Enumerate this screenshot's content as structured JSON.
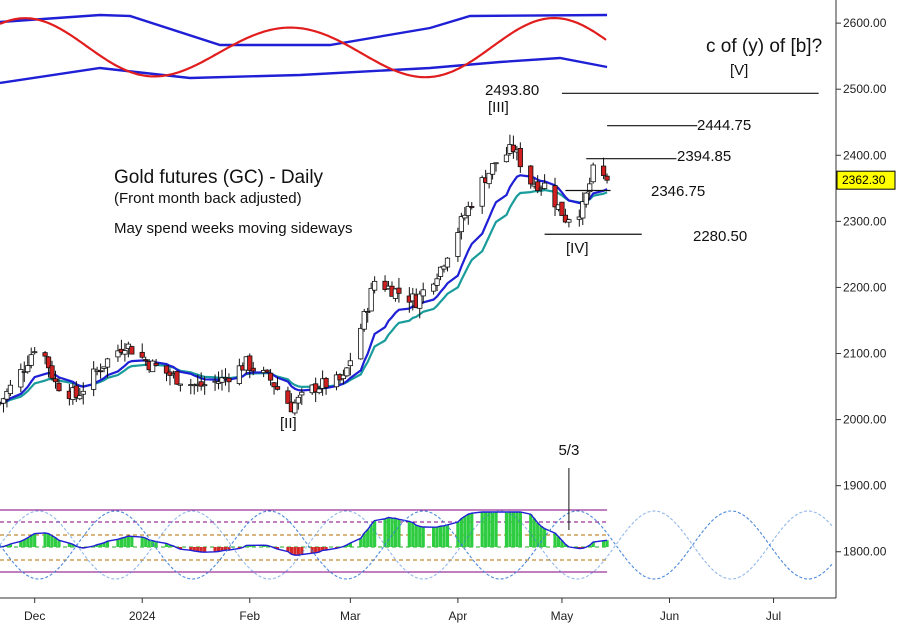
{
  "chart_data": {
    "type": "candlestick",
    "y_axis": {
      "range": [
        1730,
        2635
      ],
      "ticks": [
        1800,
        1900,
        2000,
        2100,
        2200,
        2300,
        2400,
        2500,
        2600
      ],
      "tick_labels": [
        "1800.00",
        "1900.00",
        "2000.00",
        "2100.00",
        "2200.00",
        "2300.00",
        "2400.00",
        "2500.00",
        "2600.00"
      ],
      "last_price_label": "2362.30",
      "last_price": 2362.3
    },
    "x_axis": {
      "labels": [
        {
          "text": "Dec",
          "date": "2023-12-01"
        },
        {
          "text": "2024",
          "date": "2024-01-01"
        },
        {
          "text": "Feb",
          "date": "2024-02-01"
        },
        {
          "text": "Mar",
          "date": "2024-03-01"
        },
        {
          "text": "Apr",
          "date": "2024-04-01"
        },
        {
          "text": "May",
          "date": "2024-05-01"
        },
        {
          "text": "Jun",
          "date": "2024-06-01"
        },
        {
          "text": "Jul",
          "date": "2024-07-01"
        }
      ],
      "range": [
        "2023-11-21",
        "2024-07-19"
      ]
    },
    "title": "Gold futures (GC) - Daily",
    "subtitle": "(Front month back adjusted)",
    "note": "May spend weeks moving sideways",
    "wave_labels": [
      {
        "text": "[II]",
        "date": "2024-02-14",
        "price": 1998
      },
      {
        "text": "[III]",
        "date": "2024-04-12",
        "price": 2470
      },
      {
        "text": "[IV]",
        "date": "2024-05-03",
        "price": 2262
      },
      {
        "text": "[V]",
        "date": "2024-06-29",
        "price": 2518
      },
      {
        "text": "c of (y) of [b]?",
        "date": "2024-06-29",
        "price": 2557
      }
    ],
    "levels": [
      {
        "label": "2493.80",
        "value": 2493.8,
        "from": "2024-05-01",
        "to": "2024-07-14"
      },
      {
        "label": "2444.75",
        "value": 2444.75,
        "from": "2024-05-14",
        "to": "2024-06-09"
      },
      {
        "label": "2394.85",
        "value": 2394.85,
        "from": "2024-05-08",
        "to": "2024-06-03"
      },
      {
        "label": "2346.75",
        "value": 2346.75,
        "from": "2024-05-02",
        "to": "2024-05-15"
      },
      {
        "label": "2280.50",
        "value": 2280.5,
        "from": "2024-04-26",
        "to": "2024-05-24"
      }
    ],
    "marker": {
      "text": "5/3",
      "date": "2024-05-03"
    },
    "price_series": {
      "anchors": [
        {
          "date": "2023-11-21",
          "close": 2025
        },
        {
          "date": "2023-11-28",
          "close": 2080
        },
        {
          "date": "2023-12-01",
          "close": 2110
        },
        {
          "date": "2023-12-04",
          "close": 2095
        },
        {
          "date": "2023-12-07",
          "close": 2055
        },
        {
          "date": "2023-12-13",
          "close": 2035
        },
        {
          "date": "2023-12-20",
          "close": 2080
        },
        {
          "date": "2023-12-27",
          "close": 2115
        },
        {
          "date": "2024-01-03",
          "close": 2085
        },
        {
          "date": "2024-01-10",
          "close": 2065
        },
        {
          "date": "2024-01-17",
          "close": 2050
        },
        {
          "date": "2024-01-24",
          "close": 2060
        },
        {
          "date": "2024-01-31",
          "close": 2085
        },
        {
          "date": "2024-02-07",
          "close": 2060
        },
        {
          "date": "2024-02-13",
          "close": 2020
        },
        {
          "date": "2024-02-20",
          "close": 2050
        },
        {
          "date": "2024-02-28",
          "close": 2060
        },
        {
          "date": "2024-03-05",
          "close": 2155
        },
        {
          "date": "2024-03-08",
          "close": 2210
        },
        {
          "date": "2024-03-14",
          "close": 2195
        },
        {
          "date": "2024-03-20",
          "close": 2180
        },
        {
          "date": "2024-03-27",
          "close": 2230
        },
        {
          "date": "2024-04-03",
          "close": 2310
        },
        {
          "date": "2024-04-08",
          "close": 2360
        },
        {
          "date": "2024-04-12",
          "close": 2390
        },
        {
          "date": "2024-04-17",
          "close": 2410
        },
        {
          "date": "2024-04-22",
          "close": 2360
        },
        {
          "date": "2024-04-26",
          "close": 2355
        },
        {
          "date": "2024-05-02",
          "close": 2305
        },
        {
          "date": "2024-05-07",
          "close": 2320
        },
        {
          "date": "2024-05-10",
          "close": 2375
        },
        {
          "date": "2024-05-14",
          "close": 2362.3
        }
      ]
    },
    "indicator_top": {
      "bands": [
        {
          "name": "upper",
          "color": "#1f1fd6"
        },
        {
          "name": "lower",
          "color": "#1f1fd6"
        }
      ],
      "oscillator_color": "#e11d1d"
    },
    "indicator_bottom": {
      "levels": [
        {
          "color": "#800080"
        },
        {
          "color": "#800080"
        },
        {
          "color": "#b36b00"
        },
        {
          "color": "#1fa81f"
        },
        {
          "color": "#b36b00"
        },
        {
          "color": "#800080"
        }
      ],
      "histogram_up_color": "#2ecc40",
      "histogram_down_color": "#d62728",
      "cycle_color": "#3b7dd8"
    },
    "moving_averages": [
      {
        "color": "#1f1fd6"
      },
      {
        "color": "#1a9c9c"
      }
    ],
    "grid": false
  }
}
